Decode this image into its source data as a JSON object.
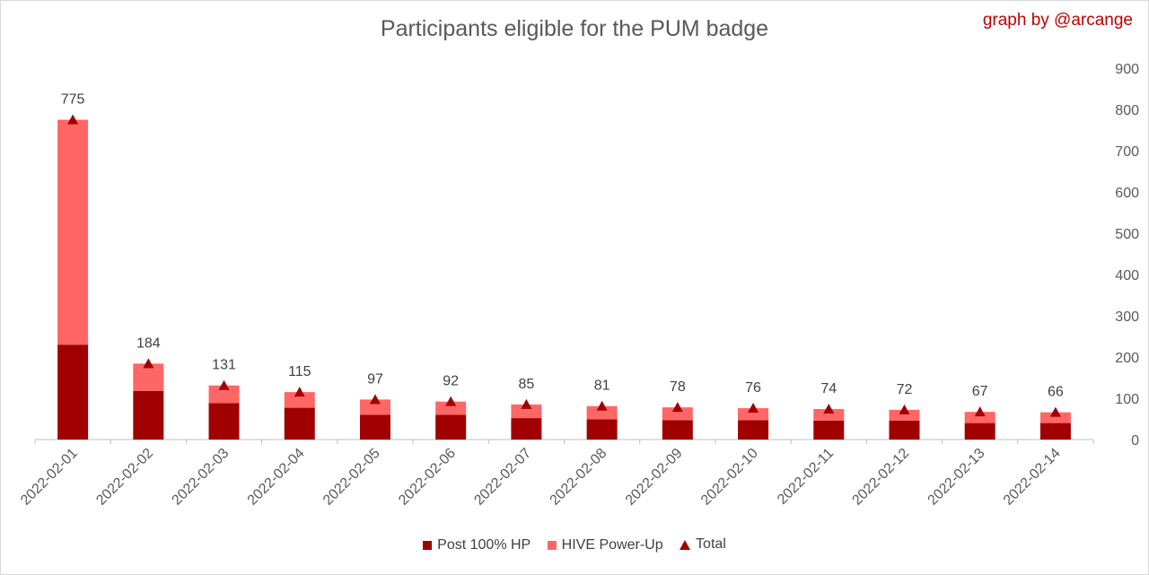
{
  "chart_data": {
    "type": "bar",
    "stacked": true,
    "title": "Participants eligible for the PUM badge",
    "credit": "graph by @arcange",
    "categories": [
      "2022-02-01",
      "2022-02-02",
      "2022-02-03",
      "2022-02-04",
      "2022-02-05",
      "2022-02-06",
      "2022-02-07",
      "2022-02-08",
      "2022-02-09",
      "2022-02-10",
      "2022-02-11",
      "2022-02-12",
      "2022-02-13",
      "2022-02-14"
    ],
    "series": [
      {
        "name": "Post 100% HP",
        "color": "#a00000",
        "values": [
          230,
          118,
          88,
          77,
          60,
          60,
          52,
          49,
          47,
          47,
          46,
          46,
          40,
          40
        ]
      },
      {
        "name": "HIVE Power-Up",
        "color": "#ff6666",
        "values": [
          545,
          66,
          43,
          38,
          37,
          32,
          33,
          32,
          31,
          29,
          28,
          26,
          27,
          26
        ]
      }
    ],
    "line_series": {
      "name": "Total",
      "color": "#a00000",
      "marker": "triangle",
      "values": [
        775,
        184,
        131,
        115,
        97,
        92,
        85,
        81,
        78,
        76,
        74,
        72,
        67,
        66
      ]
    },
    "data_labels": [
      "775",
      "184",
      "131",
      "115",
      "97",
      "92",
      "85",
      "81",
      "78",
      "76",
      "74",
      "72",
      "67",
      "66"
    ],
    "y_axis": {
      "position": "right",
      "ylim": [
        0,
        900
      ],
      "ticks": [
        0,
        100,
        200,
        300,
        400,
        500,
        600,
        700,
        800,
        900
      ]
    },
    "grid": false,
    "legend_position": "bottom"
  }
}
